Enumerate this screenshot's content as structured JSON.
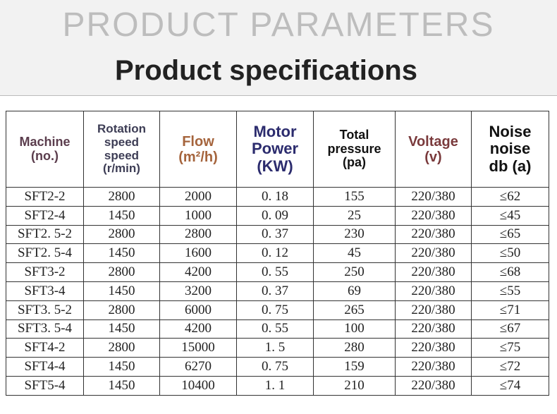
{
  "header": {
    "banner": "PRODUCT PARAMETERS",
    "title": "Product specifications"
  },
  "table": {
    "columns": [
      [
        "Machine",
        "(no.)"
      ],
      [
        "Rotation",
        "speed",
        "speed",
        "(r/min)"
      ],
      [
        "Flow",
        "(m²/h)"
      ],
      [
        "Motor",
        "Power",
        "(KW)"
      ],
      [
        "Total",
        "pressure",
        "(pa)"
      ],
      [
        "Voltage",
        "(v)"
      ],
      [
        "Noise",
        "noise",
        "db (a)"
      ]
    ],
    "rows": [
      [
        "SFT2-2",
        "2800",
        "2000",
        "0. 18",
        "155",
        "220/380",
        "≤62"
      ],
      [
        "SFT2-4",
        "1450",
        "1000",
        "0. 09",
        "25",
        "220/380",
        "≤45"
      ],
      [
        "SFT2. 5-2",
        "2800",
        "2800",
        "0. 37",
        "230",
        "220/380",
        "≤65"
      ],
      [
        "SFT2. 5-4",
        "1450",
        "1600",
        "0. 12",
        "45",
        "220/380",
        "≤50"
      ],
      [
        "SFT3-2",
        "2800",
        "4200",
        "0. 55",
        "250",
        "220/380",
        "≤68"
      ],
      [
        "SFT3-4",
        "1450",
        "3200",
        "0. 37",
        "69",
        "220/380",
        "≤55"
      ],
      [
        "SFT3. 5-2",
        "2800",
        "6000",
        "0. 75",
        "265",
        "220/380",
        "≤71"
      ],
      [
        "SFT3. 5-4",
        "1450",
        "4200",
        "0. 55",
        "100",
        "220/380",
        "≤67"
      ],
      [
        "SFT4-2",
        "2800",
        "15000",
        "1. 5",
        "280",
        "220/380",
        "≤75"
      ],
      [
        "SFT4-4",
        "1450",
        "6270",
        "0. 75",
        "159",
        "220/380",
        "≤72"
      ],
      [
        "SFT5-4",
        "1450",
        "10400",
        "1. 1",
        "210",
        "220/380",
        "≤74"
      ]
    ]
  }
}
